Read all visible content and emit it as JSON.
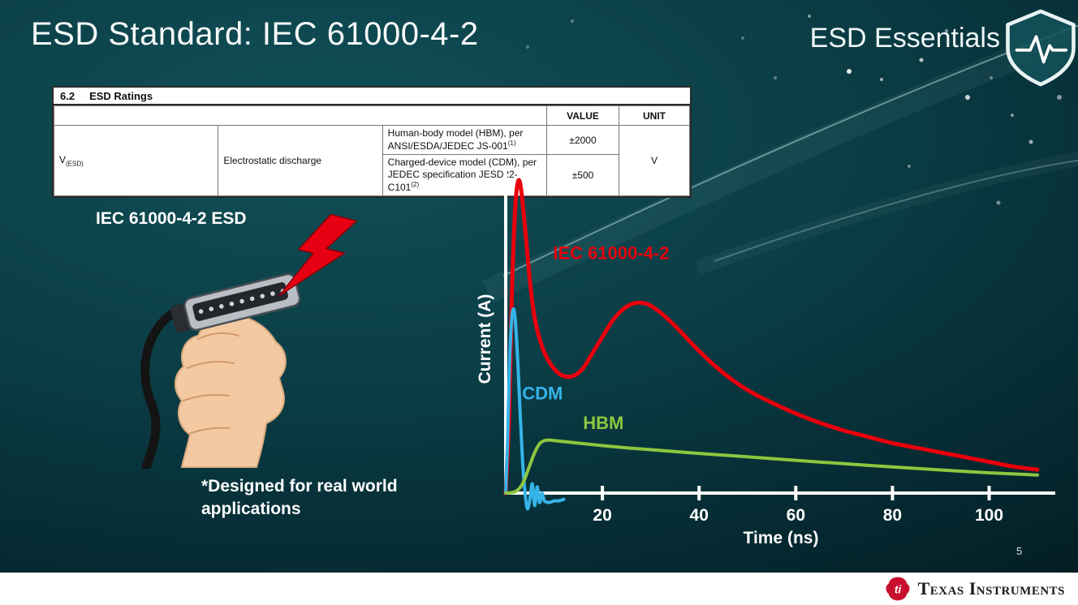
{
  "slide": {
    "title": "ESD Standard: IEC 61000-4-2",
    "series_brand": "ESD Essentials",
    "page_number": "5"
  },
  "ratings_table": {
    "section_number": "6.2",
    "section_title": "ESD Ratings",
    "value_header": "VALUE",
    "unit_header": "UNIT",
    "symbol": "V",
    "symbol_sub": "(ESD)",
    "parameter": "Electrostatic discharge",
    "rows": [
      {
        "description": "Human-body model (HBM), per ANSI/ESDA/JEDEC JS-001",
        "footnote_ref": "(1)",
        "value": "±2000"
      },
      {
        "description": "Charged-device model (CDM), per JEDEC specification JESD22-C101",
        "footnote_ref": "(2)",
        "value": "±500"
      }
    ],
    "unit": "V"
  },
  "illustration": {
    "caption": "IEC 61000-4-2 ESD",
    "note_line1": "*Designed for real world",
    "note_line2": "applications"
  },
  "chart_data": {
    "type": "line",
    "xlabel": "Time (ns)",
    "ylabel": "Current (A)",
    "xlim": [
      0,
      112
    ],
    "x_ticks": [
      20,
      40,
      60,
      80,
      100
    ],
    "grid": false,
    "y_scale_note": "no numeric y-axis shown; values normalized to IEC 61000-4-2 peak = 1.0",
    "series": [
      {
        "name": "IEC 61000-4-2",
        "color": "#e8000d",
        "width": 5,
        "label_at": [
          9.8,
          0.75
        ],
        "x": [
          0,
          0.7,
          1.3,
          2,
          2.6,
          3.2,
          4,
          5,
          6,
          7.5,
          9,
          10.5,
          12,
          14,
          16,
          18,
          20,
          22,
          24,
          26,
          28,
          30,
          33,
          36,
          40,
          45,
          50,
          55,
          60,
          65,
          70,
          75,
          80,
          85,
          90,
          95,
          100,
          105,
          110
        ],
        "y": [
          0,
          0.25,
          0.65,
          0.92,
          1.0,
          0.97,
          0.85,
          0.68,
          0.56,
          0.47,
          0.42,
          0.39,
          0.375,
          0.375,
          0.4,
          0.45,
          0.5,
          0.55,
          0.585,
          0.605,
          0.61,
          0.6,
          0.565,
          0.52,
          0.455,
          0.385,
          0.33,
          0.29,
          0.255,
          0.225,
          0.2,
          0.18,
          0.16,
          0.145,
          0.13,
          0.115,
          0.1,
          0.085,
          0.075
        ]
      },
      {
        "name": "CDM",
        "color": "#35b4e8",
        "width": 4,
        "label_at": [
          3.4,
          0.3
        ],
        "x": [
          0,
          0.4,
          0.8,
          1.2,
          1.6,
          2.0,
          2.5,
          3.0,
          3.5,
          4.0,
          4.5,
          5.0,
          5.5,
          6.0,
          6.5,
          7.0,
          7.5,
          8.0,
          9.0,
          10.0,
          11.0,
          12.0
        ],
        "y": [
          0,
          0.18,
          0.42,
          0.55,
          0.59,
          0.55,
          0.42,
          0.25,
          0.1,
          0.0,
          -0.05,
          -0.02,
          0.03,
          -0.04,
          0.02,
          -0.03,
          0.0,
          -0.025,
          -0.03,
          -0.025,
          -0.025,
          -0.02
        ]
      },
      {
        "name": "HBM",
        "color": "#8dc63f",
        "width": 4,
        "label_at": [
          16,
          0.205
        ],
        "x": [
          0,
          2,
          3.5,
          5,
          6,
          7,
          8,
          9,
          10,
          12,
          15,
          20,
          25,
          30,
          40,
          50,
          60,
          70,
          80,
          90,
          100,
          110
        ],
        "y": [
          0,
          0.005,
          0.03,
          0.09,
          0.13,
          0.158,
          0.168,
          0.17,
          0.168,
          0.165,
          0.16,
          0.152,
          0.145,
          0.139,
          0.127,
          0.116,
          0.105,
          0.094,
          0.084,
          0.074,
          0.065,
          0.058
        ]
      }
    ]
  },
  "footer": {
    "brand": "Texas Instruments"
  }
}
